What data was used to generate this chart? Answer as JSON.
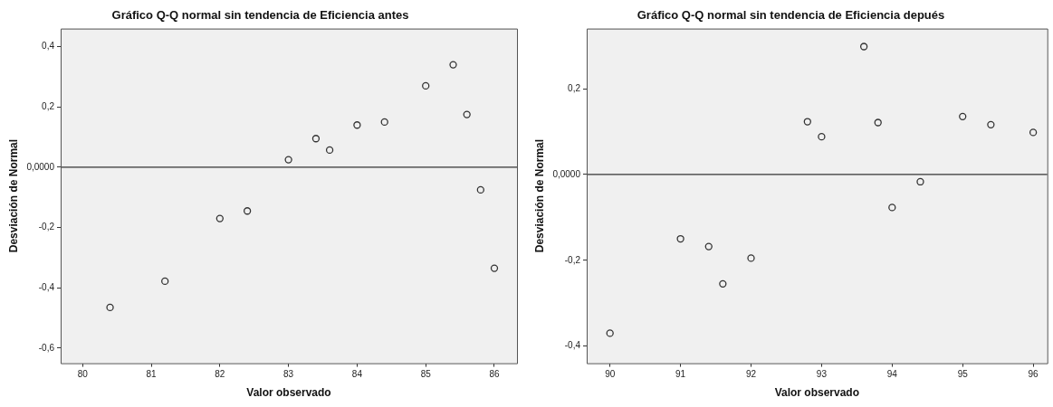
{
  "chart_data": [
    {
      "type": "scatter",
      "title": "Gráfico Q-Q normal sin tendencia de Eficiencia antes",
      "xlabel": "Valor observado",
      "ylabel": "Desviación de Normal",
      "marker": "circle",
      "series": [
        {
          "color": "#333333",
          "x": [
            80.4,
            81.2,
            82.0,
            82.4,
            83.0,
            83.4,
            83.6,
            84.0,
            84.4,
            85.0,
            85.4,
            85.6,
            85.8,
            86.0
          ],
          "values": [
            -0.465,
            -0.378,
            -0.17,
            -0.145,
            0.025,
            0.095,
            0.057,
            0.14,
            0.15,
            0.27,
            0.34,
            0.175,
            -0.075,
            -0.335
          ]
        }
      ],
      "xlim": [
        79.68,
        86.33
      ],
      "xticks": [
        80,
        81,
        82,
        83,
        84,
        85,
        86
      ],
      "ylim": [
        -0.65,
        0.46
      ],
      "yticks": [
        {
          "value": -0.6,
          "label": "-0,6"
        },
        {
          "value": -0.4,
          "label": "-0,4"
        },
        {
          "value": -0.2,
          "label": "-0,2"
        },
        {
          "value": 0,
          "label": "0,0000"
        },
        {
          "value": 0.2,
          "label": "0,2"
        },
        {
          "value": 0.4,
          "label": "0,4"
        }
      ],
      "ref_lines": [
        {
          "axis": "y",
          "value": 0,
          "color": "#333333"
        }
      ]
    },
    {
      "type": "scatter",
      "title": "Gráfico Q-Q normal sin tendencia de Eficiencia depués",
      "xlabel": "Valor observado",
      "ylabel": "Desviación de Normal",
      "marker": "circle",
      "series": [
        {
          "color": "#333333",
          "x": [
            90,
            91,
            91.4,
            91.6,
            92,
            92.8,
            93,
            93.6,
            93.8,
            94,
            94.4,
            95,
            95.4,
            96
          ],
          "values": [
            -0.37,
            -0.15,
            -0.168,
            -0.255,
            -0.195,
            0.123,
            0.088,
            0.298,
            0.121,
            -0.077,
            -0.017,
            0.135,
            0.116,
            0.098
          ]
        }
      ],
      "xlim": [
        89.67,
        96.2
      ],
      "xticks": [
        90,
        91,
        92,
        93,
        94,
        95,
        96
      ],
      "ylim": [
        -0.44,
        0.34
      ],
      "yticks": [
        {
          "value": -0.4,
          "label": "-0,4"
        },
        {
          "value": -0.2,
          "label": "-0,2"
        },
        {
          "value": 0,
          "label": "0,0000"
        },
        {
          "value": 0.2,
          "label": "0,2"
        }
      ],
      "ref_lines": [
        {
          "axis": "y",
          "value": 0,
          "color": "#333333"
        }
      ]
    }
  ]
}
